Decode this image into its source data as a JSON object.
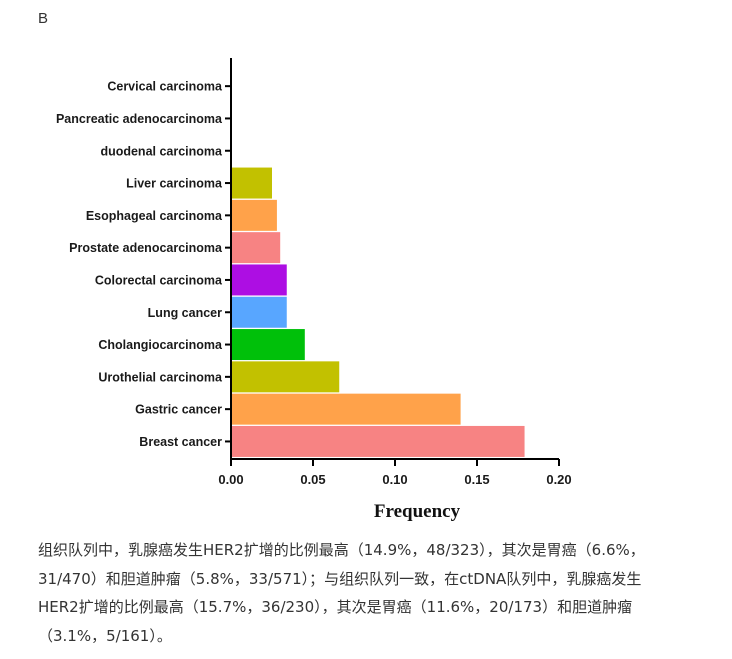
{
  "panel_label": "B",
  "chart_data": {
    "type": "bar",
    "orientation": "horizontal",
    "categories": [
      "Cervical carcinoma",
      "Pancreatic adenocarcinoma",
      "duodenal carcinoma",
      "Liver carcinoma",
      "Esophageal carcinoma",
      "Prostate adenocarcinoma",
      "Colorectal carcinoma",
      "Lung cancer",
      "Cholangiocarcinoma",
      "Urothelial carcinoma",
      "Gastric cancer",
      "Breast cancer"
    ],
    "values": [
      0,
      0,
      0,
      0.025,
      0.028,
      0.03,
      0.034,
      0.034,
      0.045,
      0.066,
      0.14,
      0.179
    ],
    "colors": [
      "#f78383",
      "#f78383",
      "#f78383",
      "#c2c100",
      "#ffa24a",
      "#f78383",
      "#ad0ee3",
      "#58a6ff",
      "#00c00a",
      "#c2c100",
      "#ffa24a",
      "#f78383"
    ],
    "xlabel": "Frequency",
    "ylabel": "",
    "xlim": [
      0,
      0.2
    ],
    "x_ticks": [
      "0.00",
      "0.05",
      "0.10",
      "0.15",
      "0.20"
    ],
    "grid": false
  },
  "caption_lines": [
    "组织队列中，乳腺癌发生HER2扩增的比例最高（14.9%，48/323），其次是胃癌（6.6%，",
    "31/470）和胆道肿瘤（5.8%，33/571）；与组织队列一致，在ctDNA队列中，乳腺癌发生",
    "HER2扩增的比例最高（15.7%，36/230），其次是胃癌（11.6%，20/173）和胆道肿瘤",
    "（3.1%，5/161）。"
  ]
}
